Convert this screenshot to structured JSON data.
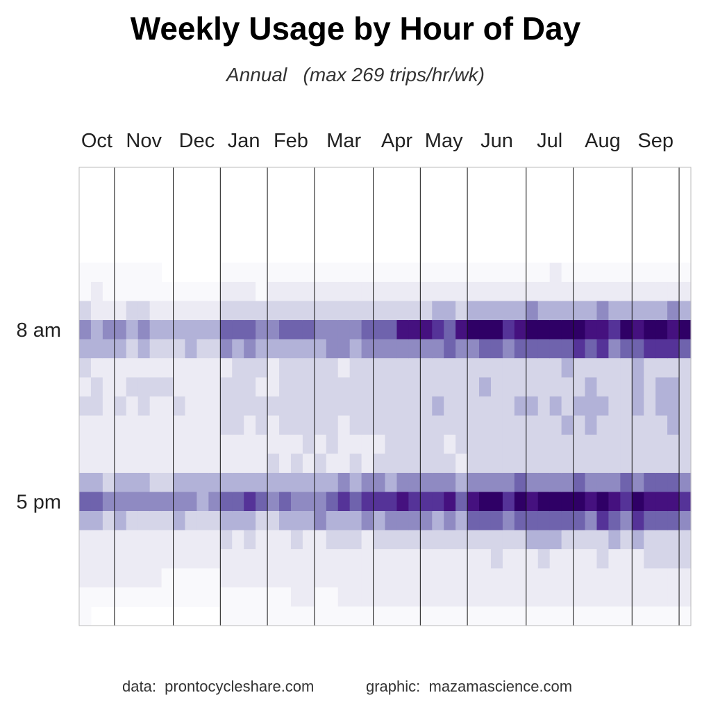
{
  "title": "Weekly Usage by Hour of Day",
  "subtitle": "Annual   (max 269 trips/hr/wk)",
  "footer": {
    "data_credit": "data:  prontocycleshare.com",
    "graphic_credit": "graphic:  mazamascience.com"
  },
  "chart_data": {
    "type": "heatmap",
    "title": "Weekly Usage by Hour of Day",
    "subtitle": "Annual   (max 269 trips/hr/wk)",
    "x_axis": {
      "unit": "week",
      "n_weeks": 52,
      "month_labels": [
        "Oct",
        "Nov",
        "Dec",
        "Jan",
        "Feb",
        "Mar",
        "Apr",
        "May",
        "Jun",
        "Jul",
        "Aug",
        "Sep"
      ],
      "month_start_weeks": [
        0,
        3,
        8,
        12,
        16,
        20,
        25,
        29,
        33,
        38,
        42,
        47,
        51
      ],
      "labels_position": "top"
    },
    "y_axis": {
      "unit": "hour of day",
      "range": [
        0,
        24
      ],
      "direction": "midnight at top",
      "tick_labels": [
        {
          "hour": 8,
          "label": "8 am"
        },
        {
          "hour": 17,
          "label": "5 pm"
        }
      ]
    },
    "value_scale": {
      "max_trips_per_hr_per_wk": 269,
      "palette": [
        "#ffffff",
        "#f9f9fc",
        "#ecebf4",
        "#d5d5e8",
        "#b2b2d8",
        "#8f8ac2",
        "#6f63ad",
        "#553398",
        "#45117f",
        "#2f0066"
      ]
    },
    "hour_profiles": [
      {
        "hour": 0,
        "low": 0,
        "high": 0
      },
      {
        "hour": 1,
        "low": 0,
        "high": 0
      },
      {
        "hour": 2,
        "low": 0,
        "high": 0
      },
      {
        "hour": 3,
        "low": 0,
        "high": 0
      },
      {
        "hour": 4,
        "low": 0,
        "high": 0
      },
      {
        "hour": 5,
        "low": 0,
        "high": 0.02
      },
      {
        "hour": 6,
        "low": 0.01,
        "high": 0.06
      },
      {
        "hour": 7,
        "low": 0.09,
        "high": 0.38
      },
      {
        "hour": 8,
        "low": 0.3,
        "high": 1.0
      },
      {
        "hour": 9,
        "low": 0.2,
        "high": 0.7
      },
      {
        "hour": 10,
        "low": 0.1,
        "high": 0.25
      },
      {
        "hour": 11,
        "low": 0.11,
        "high": 0.28
      },
      {
        "hour": 12,
        "low": 0.12,
        "high": 0.3
      },
      {
        "hour": 13,
        "low": 0.1,
        "high": 0.26
      },
      {
        "hour": 14,
        "low": 0.08,
        "high": 0.22
      },
      {
        "hour": 15,
        "low": 0.08,
        "high": 0.23
      },
      {
        "hour": 16,
        "low": 0.24,
        "high": 0.55
      },
      {
        "hour": 17,
        "low": 0.4,
        "high": 0.93
      },
      {
        "hour": 18,
        "low": 0.2,
        "high": 0.58
      },
      {
        "hour": 19,
        "low": 0.08,
        "high": 0.28
      },
      {
        "hour": 20,
        "low": 0.03,
        "high": 0.15
      },
      {
        "hour": 21,
        "low": 0.01,
        "high": 0.09
      },
      {
        "hour": 22,
        "low": 0.005,
        "high": 0.045
      },
      {
        "hour": 23,
        "low": 0,
        "high": 0.01
      }
    ],
    "weekly_activity": [
      0.22,
      0.2,
      0.15,
      0.14,
      0.12,
      0.16,
      0.12,
      0.06,
      0.1,
      0.06,
      0.02,
      0.03,
      0.32,
      0.28,
      0.3,
      0.27,
      0.3,
      0.3,
      0.33,
      0.35,
      0.38,
      0.4,
      0.4,
      0.38,
      0.42,
      0.45,
      0.55,
      0.58,
      0.55,
      0.66,
      0.62,
      0.6,
      0.65,
      0.72,
      0.8,
      0.78,
      0.7,
      0.75,
      0.92,
      0.9,
      0.88,
      0.85,
      0.87,
      0.88,
      0.9,
      0.78,
      0.7,
      0.9,
      0.92,
      0.88,
      0.94,
      0.8
    ],
    "grid": "vertical month boundary lines"
  }
}
